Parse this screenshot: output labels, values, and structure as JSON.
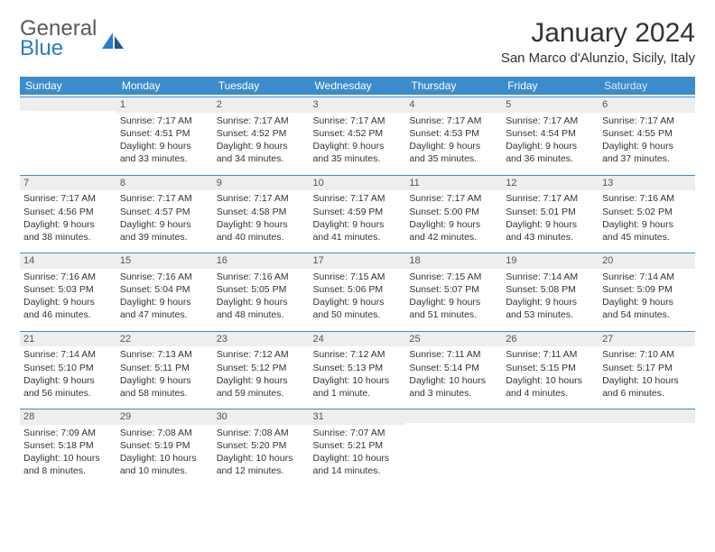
{
  "logo": {
    "word1": "General",
    "word2": "Blue"
  },
  "title": "January 2024",
  "location": "San Marco d'Alunzio, Sicily, Italy",
  "colors": {
    "header_bg": "#3a8ccc",
    "header_text": "#ffffff",
    "daynum_bg": "#eeeeee",
    "daynum_text": "#555555",
    "cell_text": "#333333",
    "rule": "#3a8ccc",
    "logo_gray": "#5a5a5a",
    "logo_blue": "#2b7cc4"
  },
  "day_names": [
    "Sunday",
    "Monday",
    "Tuesday",
    "Wednesday",
    "Thursday",
    "Friday",
    "Saturday"
  ],
  "weeks": [
    [
      null,
      {
        "n": "1",
        "sr": "7:17 AM",
        "ss": "4:51 PM",
        "dl": "9 hours and 33 minutes."
      },
      {
        "n": "2",
        "sr": "7:17 AM",
        "ss": "4:52 PM",
        "dl": "9 hours and 34 minutes."
      },
      {
        "n": "3",
        "sr": "7:17 AM",
        "ss": "4:52 PM",
        "dl": "9 hours and 35 minutes."
      },
      {
        "n": "4",
        "sr": "7:17 AM",
        "ss": "4:53 PM",
        "dl": "9 hours and 35 minutes."
      },
      {
        "n": "5",
        "sr": "7:17 AM",
        "ss": "4:54 PM",
        "dl": "9 hours and 36 minutes."
      },
      {
        "n": "6",
        "sr": "7:17 AM",
        "ss": "4:55 PM",
        "dl": "9 hours and 37 minutes."
      }
    ],
    [
      {
        "n": "7",
        "sr": "7:17 AM",
        "ss": "4:56 PM",
        "dl": "9 hours and 38 minutes."
      },
      {
        "n": "8",
        "sr": "7:17 AM",
        "ss": "4:57 PM",
        "dl": "9 hours and 39 minutes."
      },
      {
        "n": "9",
        "sr": "7:17 AM",
        "ss": "4:58 PM",
        "dl": "9 hours and 40 minutes."
      },
      {
        "n": "10",
        "sr": "7:17 AM",
        "ss": "4:59 PM",
        "dl": "9 hours and 41 minutes."
      },
      {
        "n": "11",
        "sr": "7:17 AM",
        "ss": "5:00 PM",
        "dl": "9 hours and 42 minutes."
      },
      {
        "n": "12",
        "sr": "7:17 AM",
        "ss": "5:01 PM",
        "dl": "9 hours and 43 minutes."
      },
      {
        "n": "13",
        "sr": "7:16 AM",
        "ss": "5:02 PM",
        "dl": "9 hours and 45 minutes."
      }
    ],
    [
      {
        "n": "14",
        "sr": "7:16 AM",
        "ss": "5:03 PM",
        "dl": "9 hours and 46 minutes."
      },
      {
        "n": "15",
        "sr": "7:16 AM",
        "ss": "5:04 PM",
        "dl": "9 hours and 47 minutes."
      },
      {
        "n": "16",
        "sr": "7:16 AM",
        "ss": "5:05 PM",
        "dl": "9 hours and 48 minutes."
      },
      {
        "n": "17",
        "sr": "7:15 AM",
        "ss": "5:06 PM",
        "dl": "9 hours and 50 minutes."
      },
      {
        "n": "18",
        "sr": "7:15 AM",
        "ss": "5:07 PM",
        "dl": "9 hours and 51 minutes."
      },
      {
        "n": "19",
        "sr": "7:14 AM",
        "ss": "5:08 PM",
        "dl": "9 hours and 53 minutes."
      },
      {
        "n": "20",
        "sr": "7:14 AM",
        "ss": "5:09 PM",
        "dl": "9 hours and 54 minutes."
      }
    ],
    [
      {
        "n": "21",
        "sr": "7:14 AM",
        "ss": "5:10 PM",
        "dl": "9 hours and 56 minutes."
      },
      {
        "n": "22",
        "sr": "7:13 AM",
        "ss": "5:11 PM",
        "dl": "9 hours and 58 minutes."
      },
      {
        "n": "23",
        "sr": "7:12 AM",
        "ss": "5:12 PM",
        "dl": "9 hours and 59 minutes."
      },
      {
        "n": "24",
        "sr": "7:12 AM",
        "ss": "5:13 PM",
        "dl": "10 hours and 1 minute."
      },
      {
        "n": "25",
        "sr": "7:11 AM",
        "ss": "5:14 PM",
        "dl": "10 hours and 3 minutes."
      },
      {
        "n": "26",
        "sr": "7:11 AM",
        "ss": "5:15 PM",
        "dl": "10 hours and 4 minutes."
      },
      {
        "n": "27",
        "sr": "7:10 AM",
        "ss": "5:17 PM",
        "dl": "10 hours and 6 minutes."
      }
    ],
    [
      {
        "n": "28",
        "sr": "7:09 AM",
        "ss": "5:18 PM",
        "dl": "10 hours and 8 minutes."
      },
      {
        "n": "29",
        "sr": "7:08 AM",
        "ss": "5:19 PM",
        "dl": "10 hours and 10 minutes."
      },
      {
        "n": "30",
        "sr": "7:08 AM",
        "ss": "5:20 PM",
        "dl": "10 hours and 12 minutes."
      },
      {
        "n": "31",
        "sr": "7:07 AM",
        "ss": "5:21 PM",
        "dl": "10 hours and 14 minutes."
      },
      null,
      null,
      null
    ]
  ],
  "labels": {
    "sunrise": "Sunrise:",
    "sunset": "Sunset:",
    "daylight": "Daylight:"
  }
}
